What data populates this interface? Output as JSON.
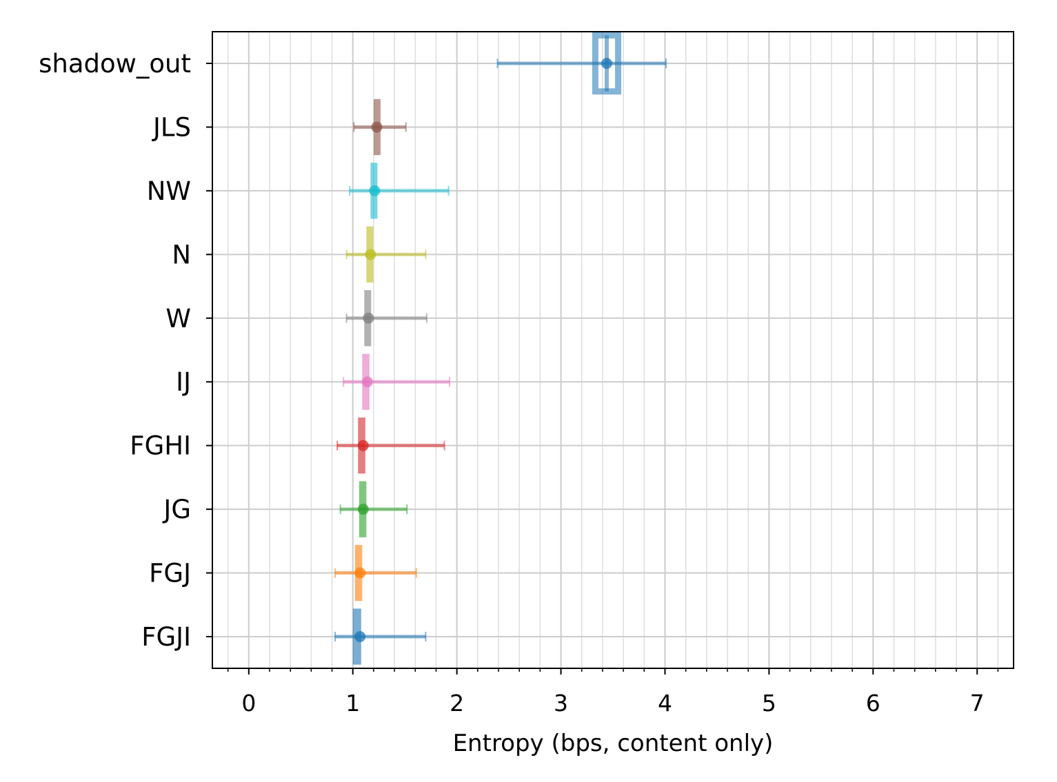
{
  "chart_data": {
    "type": "errorbar",
    "title": "",
    "xlabel": "Entropy (bps, content only)",
    "ylabel": "",
    "xlim": [
      -0.35,
      7.35
    ],
    "xticks": [
      "0",
      "1",
      "2",
      "3",
      "4",
      "5",
      "6",
      "7"
    ],
    "x_minor_step": 0.2,
    "grid": "on (major and minor)",
    "legend": "none",
    "categories": [
      "shadow_out",
      "JLS",
      "NW",
      "N",
      "W",
      "IJ",
      "FGHI",
      "JG",
      "FGJ",
      "FGJI"
    ],
    "series": [
      {
        "label": "shadow_out",
        "color": "#1f77b4",
        "mean": 3.44,
        "xerr_low": 2.39,
        "xerr_high": 4.01,
        "box_low": 3.33,
        "box_high": 3.55,
        "style": "hollow-box"
      },
      {
        "label": "JLS",
        "color": "#8c564b",
        "mean": 1.23,
        "xerr_low": 1.01,
        "xerr_high": 1.51,
        "box_low": 1.2,
        "box_high": 1.25
      },
      {
        "label": "NW",
        "color": "#17becf",
        "mean": 1.21,
        "xerr_low": 0.97,
        "xerr_high": 1.92,
        "box_low": 1.17,
        "box_high": 1.22
      },
      {
        "label": "N",
        "color": "#bcbd22",
        "mean": 1.17,
        "xerr_low": 0.94,
        "xerr_high": 1.7,
        "box_low": 1.13,
        "box_high": 1.19
      },
      {
        "label": "W",
        "color": "#7f7f7f",
        "mean": 1.15,
        "xerr_low": 0.94,
        "xerr_high": 1.71,
        "box_low": 1.11,
        "box_high": 1.17
      },
      {
        "label": "IJ",
        "color": "#e377c2",
        "mean": 1.14,
        "xerr_low": 0.91,
        "xerr_high": 1.93,
        "box_low": 1.09,
        "box_high": 1.16
      },
      {
        "label": "FGHI",
        "color": "#d62728",
        "mean": 1.1,
        "xerr_low": 0.85,
        "xerr_high": 1.88,
        "box_low": 1.05,
        "box_high": 1.12
      },
      {
        "label": "JG",
        "color": "#2ca02c",
        "mean": 1.1,
        "xerr_low": 0.88,
        "xerr_high": 1.52,
        "box_low": 1.06,
        "box_high": 1.13
      },
      {
        "label": "FGJ",
        "color": "#ff7f0e",
        "mean": 1.07,
        "xerr_low": 0.83,
        "xerr_high": 1.61,
        "box_low": 1.02,
        "box_high": 1.09
      },
      {
        "label": "FGJI",
        "color": "#1f77b4",
        "mean": 1.07,
        "xerr_low": 0.83,
        "xerr_high": 1.7,
        "box_low": 1.0,
        "box_high": 1.08
      }
    ]
  }
}
